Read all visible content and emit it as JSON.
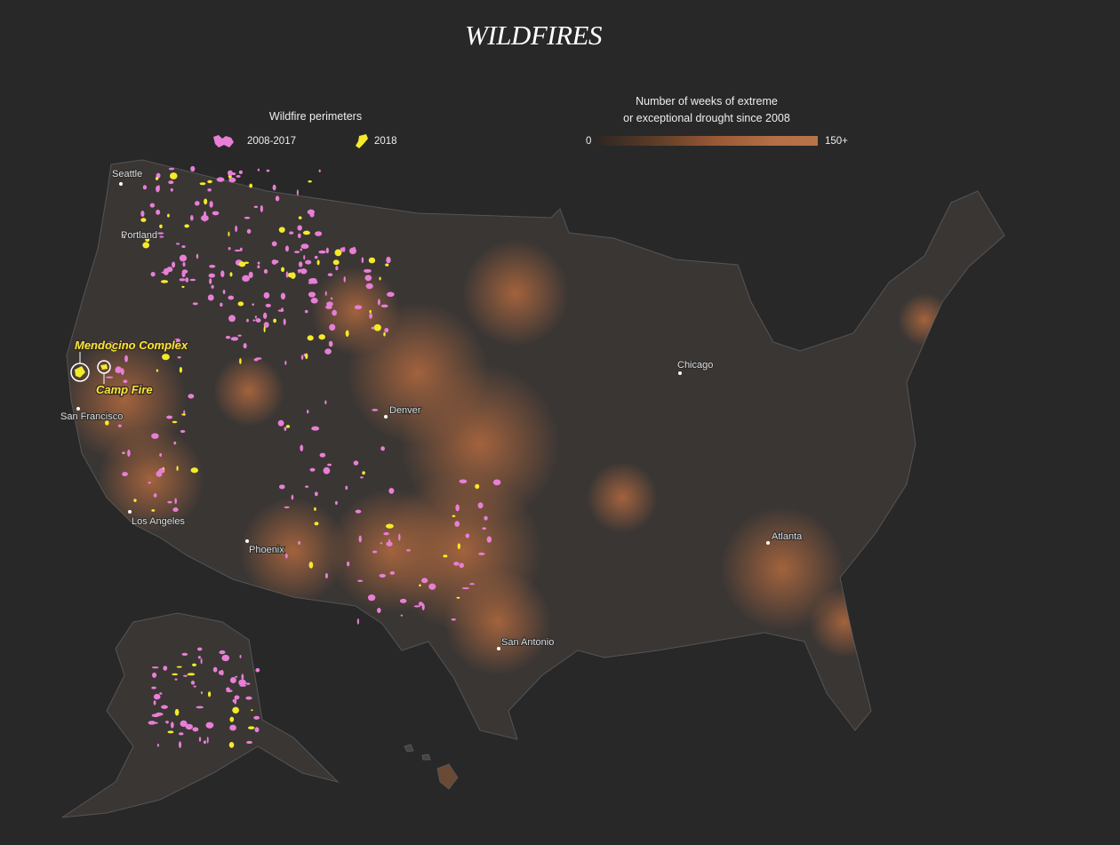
{
  "title": "WILDFIRES",
  "legend": {
    "perimeters_title": "Wildfire perimeters",
    "items": [
      {
        "label": "2008-2017",
        "color": "#e87fd6"
      },
      {
        "label": "2018",
        "color": "#f5ea2a"
      }
    ],
    "drought_title_line1": "Number of weeks of extreme",
    "drought_title_line2": "or exceptional drought since 2008",
    "scale_min": "0",
    "scale_max": "150+",
    "scale_colors": [
      "#2d2623",
      "#b77349"
    ]
  },
  "cities": [
    {
      "name": "Seattle"
    },
    {
      "name": "Portland"
    },
    {
      "name": "San Francisco"
    },
    {
      "name": "Los Angeles"
    },
    {
      "name": "Phoenix"
    },
    {
      "name": "Denver"
    },
    {
      "name": "Chicago"
    },
    {
      "name": "Atlanta"
    },
    {
      "name": "San Antonio"
    }
  ],
  "annotations": [
    {
      "name": "Mendocino Complex"
    },
    {
      "name": "Camp Fire"
    }
  ],
  "colors": {
    "background": "#282828",
    "land": "#3a3634",
    "fire_past": "#e87fd6",
    "fire_2018": "#f5ea2a",
    "drought": "#a86640"
  }
}
